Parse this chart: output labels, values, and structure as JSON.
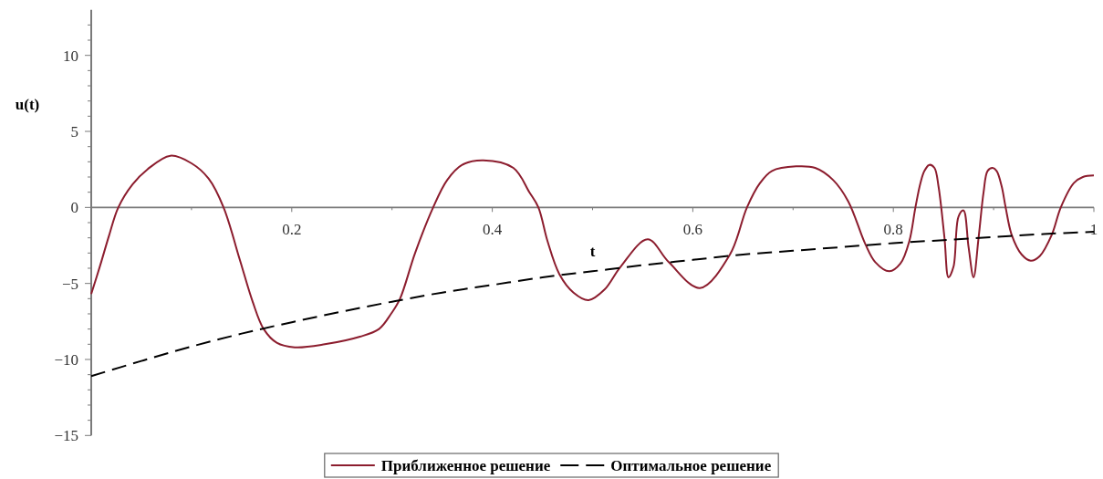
{
  "chart_data": {
    "type": "line",
    "xlabel": "t",
    "ylabel": "u(t)",
    "xlim": [
      0,
      1
    ],
    "ylim": [
      -15,
      13
    ],
    "xticks": [
      {
        "value": 0.1,
        "label": null
      },
      0.2,
      {
        "value": 0.3,
        "label": null
      },
      0.4,
      {
        "value": 0.5,
        "label": null
      },
      0.6,
      {
        "value": 0.7,
        "label": null
      },
      0.8,
      {
        "value": 0.9,
        "label": null
      },
      1
    ],
    "yticks": [
      -15,
      {
        "value": -14,
        "label": null
      },
      {
        "value": -13,
        "label": null
      },
      {
        "value": -12,
        "label": null
      },
      {
        "value": -11,
        "label": null
      },
      -10,
      {
        "value": -9,
        "label": null
      },
      {
        "value": -8,
        "label": null
      },
      {
        "value": -7,
        "label": null
      },
      {
        "value": -6,
        "label": null
      },
      -5,
      {
        "value": -4,
        "label": null
      },
      {
        "value": -3,
        "label": null
      },
      {
        "value": -2,
        "label": null
      },
      {
        "value": -1,
        "label": null
      },
      0,
      {
        "value": 1,
        "label": null
      },
      {
        "value": 2,
        "label": null
      },
      {
        "value": 3,
        "label": null
      },
      {
        "value": 4,
        "label": null
      },
      5,
      {
        "value": 6,
        "label": null
      },
      {
        "value": 7,
        "label": null
      },
      {
        "value": 8,
        "label": null
      },
      {
        "value": 9,
        "label": null
      },
      10,
      {
        "value": 11,
        "label": null
      },
      {
        "value": 12,
        "label": null
      }
    ],
    "legend": "bottom",
    "series": [
      {
        "name": "Приближенное решение",
        "color": "#8c1d2e",
        "line_style": "solid",
        "x": [
          0,
          0.009,
          0.018,
          0.027,
          0.041,
          0.056,
          0.079,
          0.1,
          0.117,
          0.132,
          0.148,
          0.161,
          0.172,
          0.185,
          0.203,
          0.233,
          0.268,
          0.287,
          0.299,
          0.308,
          0.323,
          0.341,
          0.355,
          0.37,
          0.391,
          0.421,
          0.437,
          0.446,
          0.455,
          0.467,
          0.481,
          0.496,
          0.512,
          0.528,
          0.555,
          0.576,
          0.607,
          0.637,
          0.654,
          0.667,
          0.679,
          0.703,
          0.722,
          0.74,
          0.755,
          0.772,
          0.782,
          0.796,
          0.807,
          0.816,
          0.822,
          0.827,
          0.831,
          0.836,
          0.841,
          0.845,
          0.851,
          0.855,
          0.86,
          0.865,
          0.87,
          0.875,
          0.88,
          0.885,
          0.89,
          0.894,
          0.899,
          0.903,
          0.908,
          0.912,
          0.918,
          0.928,
          0.937,
          0.946,
          0.958,
          0.967,
          0.98,
          0.989,
          1
        ],
        "values": [
          -5.7,
          -3.8,
          -1.8,
          0,
          1.5,
          2.5,
          3.4,
          2.9,
          1.9,
          0,
          -3.4,
          -6.2,
          -8.0,
          -8.9,
          -9.2,
          -9.0,
          -8.5,
          -8.0,
          -7.0,
          -6.0,
          -3.0,
          0,
          1.8,
          2.8,
          3.1,
          2.6,
          1.0,
          0,
          -2.2,
          -4.4,
          -5.6,
          -6.1,
          -5.4,
          -3.9,
          -2.1,
          -3.6,
          -5.3,
          -3.1,
          0,
          1.6,
          2.4,
          2.7,
          2.6,
          1.8,
          0.4,
          -2.4,
          -3.6,
          -4.2,
          -3.7,
          -2.2,
          0,
          1.6,
          2.4,
          2.8,
          2.6,
          1.4,
          -2.0,
          -4.6,
          -3.9,
          -0.6,
          -0.2,
          -2.6,
          -4.6,
          -2.0,
          1.0,
          2.4,
          2.6,
          2.4,
          1.4,
          0,
          -1.8,
          -3.1,
          -3.5,
          -3.2,
          -1.8,
          0,
          1.6,
          2.0,
          2.1
        ]
      },
      {
        "name": "Оптимальное решение",
        "color": "#000000",
        "line_style": "dashed",
        "x": [
          0,
          0.05,
          0.1,
          0.15,
          0.2,
          0.25,
          0.3,
          0.35,
          0.4,
          0.45,
          0.5,
          0.55,
          0.6,
          0.65,
          0.7,
          0.75,
          0.8,
          0.85,
          0.9,
          0.95,
          1
        ],
        "values": [
          -11.1,
          -10.1,
          -9.15,
          -8.3,
          -7.55,
          -6.85,
          -6.2,
          -5.6,
          -5.1,
          -4.6,
          -4.2,
          -3.8,
          -3.45,
          -3.1,
          -2.85,
          -2.6,
          -2.35,
          -2.15,
          -1.95,
          -1.75,
          -1.6
        ]
      }
    ]
  }
}
